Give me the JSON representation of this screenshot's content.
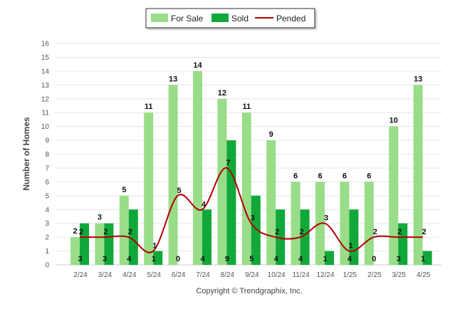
{
  "chart_data": {
    "type": "bar",
    "categories": [
      "2/24",
      "3/24",
      "4/24",
      "5/24",
      "6/24",
      "7/24",
      "8/24",
      "9/24",
      "10/24",
      "11/24",
      "12/24",
      "1/25",
      "2/25",
      "3/25",
      "4/25"
    ],
    "series": [
      {
        "name": "For Sale",
        "type": "bar",
        "color": "#99dd88",
        "values": [
          2,
          3,
          5,
          11,
          13,
          14,
          12,
          11,
          9,
          6,
          6,
          6,
          6,
          10,
          13
        ]
      },
      {
        "name": "Sold",
        "type": "bar",
        "color": "#11a83a",
        "values": [
          3,
          3,
          4,
          1,
          0,
          4,
          9,
          5,
          4,
          4,
          1,
          4,
          0,
          3,
          1
        ]
      },
      {
        "name": "Pended",
        "type": "line",
        "color": "#b30000",
        "values": [
          2,
          2,
          2,
          1,
          5,
          4,
          7,
          3,
          2,
          2,
          3,
          1,
          2,
          2,
          2
        ]
      }
    ],
    "ylabel": "Number of Homes",
    "ylim": [
      0,
      16
    ],
    "yticks": [
      0,
      1,
      2,
      3,
      4,
      5,
      6,
      7,
      8,
      9,
      10,
      11,
      12,
      13,
      14,
      15,
      16
    ],
    "grid": true,
    "legend_position": "top-center"
  },
  "footer": {
    "credit": "Copyright © Trendgraphix, Inc."
  }
}
